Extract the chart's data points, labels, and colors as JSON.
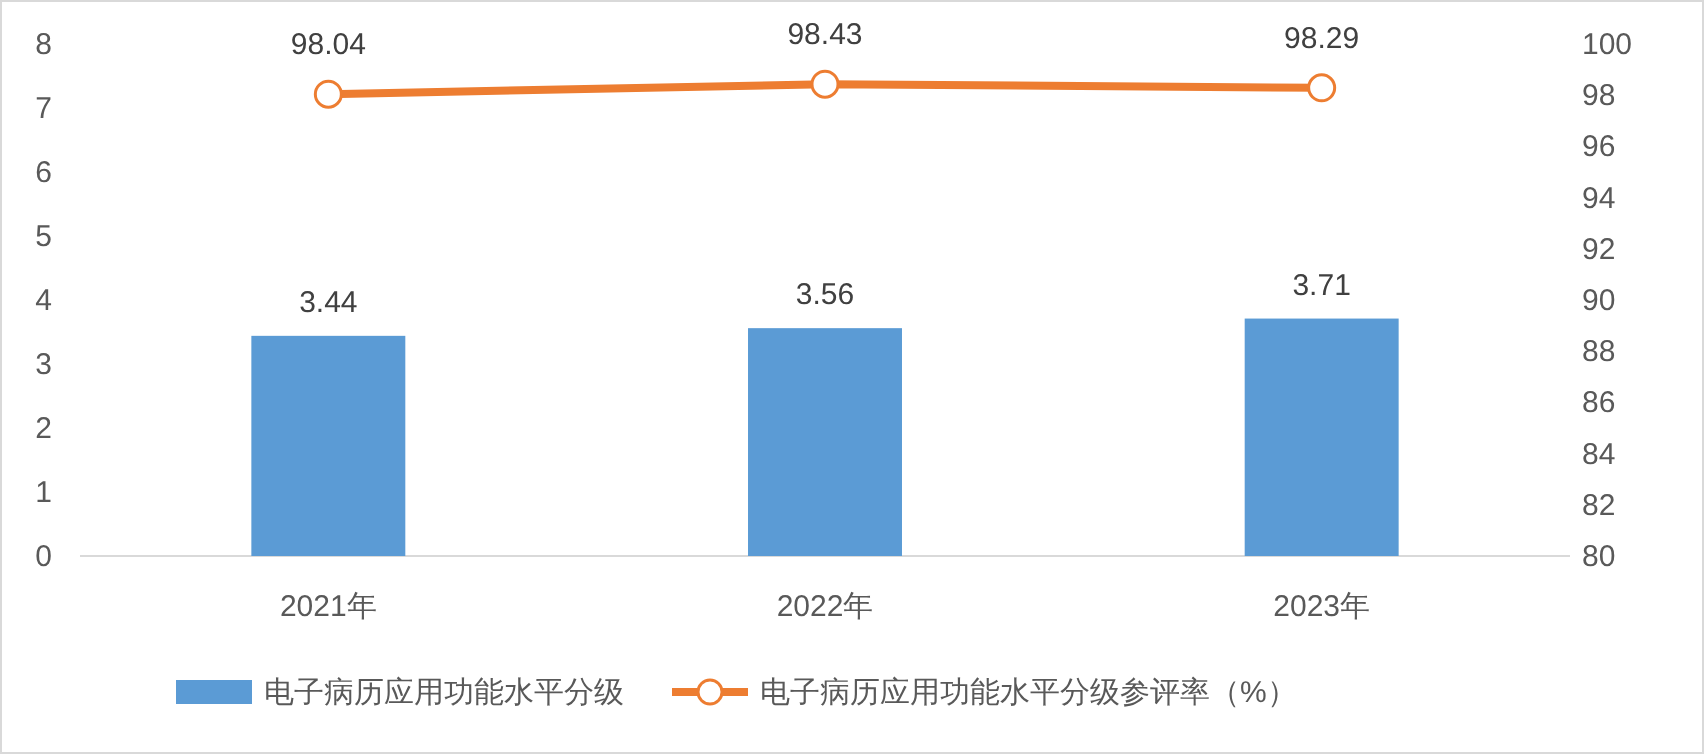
{
  "chart_data": {
    "type": "bar",
    "categories": [
      "2021年",
      "2022年",
      "2023年"
    ],
    "series": [
      {
        "name": "电子病历应用功能水平分级",
        "color": "#5b9bd5",
        "values": [
          3.44,
          3.56,
          3.71
        ]
      },
      {
        "name": "电子病历应用功能水平分级参评率（%）",
        "type": "line",
        "axis": "y2",
        "color": "#ed7d31",
        "marker": "circle",
        "values": [
          98.04,
          98.43,
          98.29
        ]
      }
    ],
    "ylim": [
      0,
      8
    ],
    "yticks": [
      0,
      1,
      2,
      3,
      4,
      5,
      6,
      7,
      8
    ],
    "y2lim": [
      80,
      100
    ],
    "y2ticks": [
      80,
      82,
      84,
      86,
      88,
      90,
      92,
      94,
      96,
      98,
      100
    ],
    "data_labels": true,
    "legend": "bottom",
    "grid": false
  }
}
